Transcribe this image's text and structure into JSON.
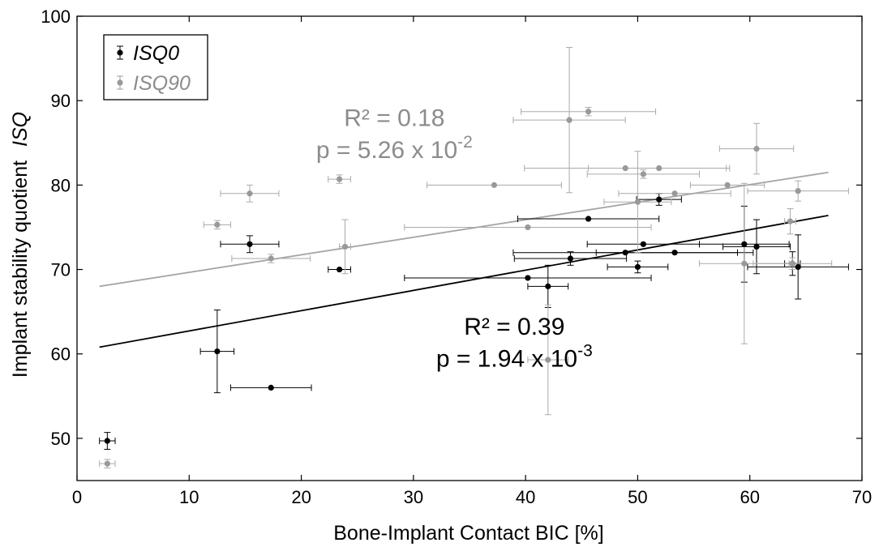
{
  "chart_data": {
    "type": "scatter",
    "xlabel": "Bone-Implant Contact BIC [%]",
    "ylabel_prefix": "Implant stability quotient",
    "ylabel_italic": "ISQ",
    "xlim": [
      0,
      70
    ],
    "ylim": [
      45,
      100
    ],
    "xticks": [
      "0",
      "10",
      "20",
      "30",
      "40",
      "50",
      "60",
      "70"
    ],
    "yticks": [
      "50",
      "60",
      "70",
      "80",
      "90",
      "100"
    ],
    "grid": false,
    "legend": {
      "placement": "top-left"
    },
    "series": [
      {
        "name": "ISQ0",
        "color": "#000000",
        "points": [
          {
            "x": 2.7,
            "y": 49.7,
            "xerr": 0.7,
            "yerr": 1.0
          },
          {
            "x": 12.5,
            "y": 60.3,
            "xerr": 1.5,
            "yerr": 4.9
          },
          {
            "x": 15.4,
            "y": 73.0,
            "xerr": 2.6,
            "yerr": 1.0
          },
          {
            "x": 17.3,
            "y": 56.0,
            "xerr": 3.6,
            "yerr": 0.0
          },
          {
            "x": 23.4,
            "y": 70.0,
            "xerr": 1.0,
            "yerr": 0.0
          },
          {
            "x": 40.2,
            "y": 69.0,
            "xerr": 11.0,
            "yerr": 0.0
          },
          {
            "x": 42.0,
            "y": 68.0,
            "xerr": 1.8,
            "yerr": 2.5
          },
          {
            "x": 44.0,
            "y": 71.3,
            "xerr": 5.0,
            "yerr": 0.8
          },
          {
            "x": 45.6,
            "y": 76.0,
            "xerr": 6.3,
            "yerr": 0.0
          },
          {
            "x": 48.9,
            "y": 72.0,
            "xerr": 10.0,
            "yerr": 0.0
          },
          {
            "x": 50.0,
            "y": 70.3,
            "xerr": 2.7,
            "yerr": 0.7
          },
          {
            "x": 50.5,
            "y": 73.0,
            "xerr": 5.0,
            "yerr": 0.0
          },
          {
            "x": 51.9,
            "y": 78.3,
            "xerr": 2.0,
            "yerr": 0.7
          },
          {
            "x": 53.3,
            "y": 72.0,
            "xerr": 7.0,
            "yerr": 0.0
          },
          {
            "x": 59.5,
            "y": 73.0,
            "xerr": 4.0,
            "yerr": 4.5
          },
          {
            "x": 60.6,
            "y": 72.7,
            "xerr": 3.0,
            "yerr": 3.2
          },
          {
            "x": 63.8,
            "y": 70.7,
            "xerr": 0.7,
            "yerr": 1.4
          },
          {
            "x": 64.3,
            "y": 70.3,
            "xerr": 4.5,
            "yerr": 3.8
          }
        ],
        "fit": {
          "x": [
            2,
            67
          ],
          "y": [
            60.8,
            76.4
          ]
        },
        "annotation": {
          "r2": "R² = 0.39",
          "p": "p = 1.94 x 10",
          "exp": "-3",
          "x": 39,
          "y_r2": 62.3,
          "y_p": 58.5
        }
      },
      {
        "name": "ISQ90",
        "color": "#999999",
        "points": [
          {
            "x": 2.7,
            "y": 47.0,
            "xerr": 0.7,
            "yerr": 0.5
          },
          {
            "x": 12.5,
            "y": 75.3,
            "xerr": 1.2,
            "yerr": 0.5
          },
          {
            "x": 15.4,
            "y": 79.0,
            "xerr": 2.6,
            "yerr": 1.0
          },
          {
            "x": 17.3,
            "y": 71.3,
            "xerr": 3.5,
            "yerr": 0.5
          },
          {
            "x": 23.4,
            "y": 80.7,
            "xerr": 1.0,
            "yerr": 0.5
          },
          {
            "x": 23.9,
            "y": 72.7,
            "xerr": 0.5,
            "yerr": 3.2
          },
          {
            "x": 37.2,
            "y": 80.0,
            "xerr": 6.0,
            "yerr": 0.0
          },
          {
            "x": 40.2,
            "y": 75.0,
            "xerr": 11.0,
            "yerr": 0.0
          },
          {
            "x": 42.0,
            "y": 59.3,
            "xerr": 1.8,
            "yerr": 6.5
          },
          {
            "x": 43.9,
            "y": 87.7,
            "xerr": 5.0,
            "yerr": 8.6
          },
          {
            "x": 45.6,
            "y": 88.7,
            "xerr": 6.0,
            "yerr": 0.5
          },
          {
            "x": 48.9,
            "y": 82.0,
            "xerr": 9.0,
            "yerr": 0.0
          },
          {
            "x": 50.0,
            "y": 78.0,
            "xerr": 3.0,
            "yerr": 6.0
          },
          {
            "x": 50.5,
            "y": 81.3,
            "xerr": 5.0,
            "yerr": 0.5
          },
          {
            "x": 51.9,
            "y": 82.0,
            "xerr": 6.3,
            "yerr": 0.0
          },
          {
            "x": 53.3,
            "y": 79.0,
            "xerr": 5.0,
            "yerr": 0.0
          },
          {
            "x": 58.0,
            "y": 80.0,
            "xerr": 3.3,
            "yerr": 0.0
          },
          {
            "x": 59.5,
            "y": 70.7,
            "xerr": 4.0,
            "yerr": 9.5
          },
          {
            "x": 60.6,
            "y": 84.3,
            "xerr": 3.3,
            "yerr": 3.0
          },
          {
            "x": 63.6,
            "y": 75.7,
            "xerr": 0.5,
            "yerr": 1.5
          },
          {
            "x": 63.8,
            "y": 70.7,
            "xerr": 3.5,
            "yerr": 0.7
          },
          {
            "x": 64.3,
            "y": 79.3,
            "xerr": 4.5,
            "yerr": 1.2
          }
        ],
        "fit": {
          "x": [
            2,
            67
          ],
          "y": [
            68.0,
            81.5
          ]
        },
        "annotation": {
          "r2": "R² = 0.18",
          "p": "p = 5.26 x 10",
          "exp": "-2",
          "x": 28.3,
          "y_r2": 87.0,
          "y_p": 83.2
        }
      }
    ]
  }
}
